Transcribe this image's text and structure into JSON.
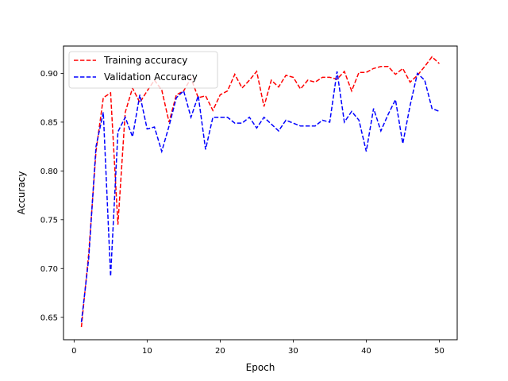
{
  "chart_data": {
    "type": "line",
    "title": "",
    "xlabel": "Epoch",
    "ylabel": "Accuracy",
    "xlim": [
      -1.45,
      52.45
    ],
    "ylim": [
      0.627,
      0.928
    ],
    "xticks": [
      0,
      10,
      20,
      30,
      40,
      50
    ],
    "yticks": [
      0.65,
      0.7,
      0.75,
      0.8,
      0.85,
      0.9
    ],
    "ytick_labels": [
      "0.65",
      "0.70",
      "0.75",
      "0.80",
      "0.85",
      "0.90"
    ],
    "grid": false,
    "legend_position": "upper-left",
    "x": [
      1,
      2,
      3,
      4,
      5,
      6,
      7,
      8,
      9,
      10,
      11,
      12,
      13,
      14,
      15,
      16,
      17,
      18,
      19,
      20,
      21,
      22,
      23,
      24,
      25,
      26,
      27,
      28,
      29,
      30,
      31,
      32,
      33,
      34,
      35,
      36,
      37,
      38,
      39,
      40,
      41,
      42,
      43,
      44,
      45,
      46,
      47,
      48,
      49,
      50
    ],
    "series": [
      {
        "name": "Training accuracy",
        "color": "#ff0000",
        "line_style": "dashed",
        "values": [
          0.64,
          0.715,
          0.82,
          0.875,
          0.88,
          0.745,
          0.86,
          0.885,
          0.87,
          0.882,
          0.893,
          0.883,
          0.85,
          0.878,
          0.882,
          0.895,
          0.875,
          0.877,
          0.862,
          0.878,
          0.882,
          0.899,
          0.885,
          0.893,
          0.902,
          0.866,
          0.893,
          0.886,
          0.898,
          0.896,
          0.884,
          0.893,
          0.891,
          0.896,
          0.896,
          0.894,
          0.902,
          0.882,
          0.901,
          0.901,
          0.905,
          0.907,
          0.907,
          0.899,
          0.905,
          0.891,
          0.898,
          0.907,
          0.917,
          0.91
        ]
      },
      {
        "name": "Validation Accuracy",
        "color": "#0000ff",
        "line_style": "dashed",
        "values": [
          0.645,
          0.71,
          0.825,
          0.86,
          0.692,
          0.84,
          0.855,
          0.835,
          0.878,
          0.843,
          0.845,
          0.82,
          0.846,
          0.875,
          0.882,
          0.855,
          0.877,
          0.822,
          0.855,
          0.855,
          0.855,
          0.849,
          0.849,
          0.855,
          0.844,
          0.855,
          0.848,
          0.841,
          0.852,
          0.849,
          0.846,
          0.846,
          0.846,
          0.852,
          0.85,
          0.902,
          0.85,
          0.861,
          0.852,
          0.82,
          0.864,
          0.841,
          0.858,
          0.873,
          0.828,
          0.867,
          0.9,
          0.893,
          0.864,
          0.861
        ]
      }
    ]
  }
}
